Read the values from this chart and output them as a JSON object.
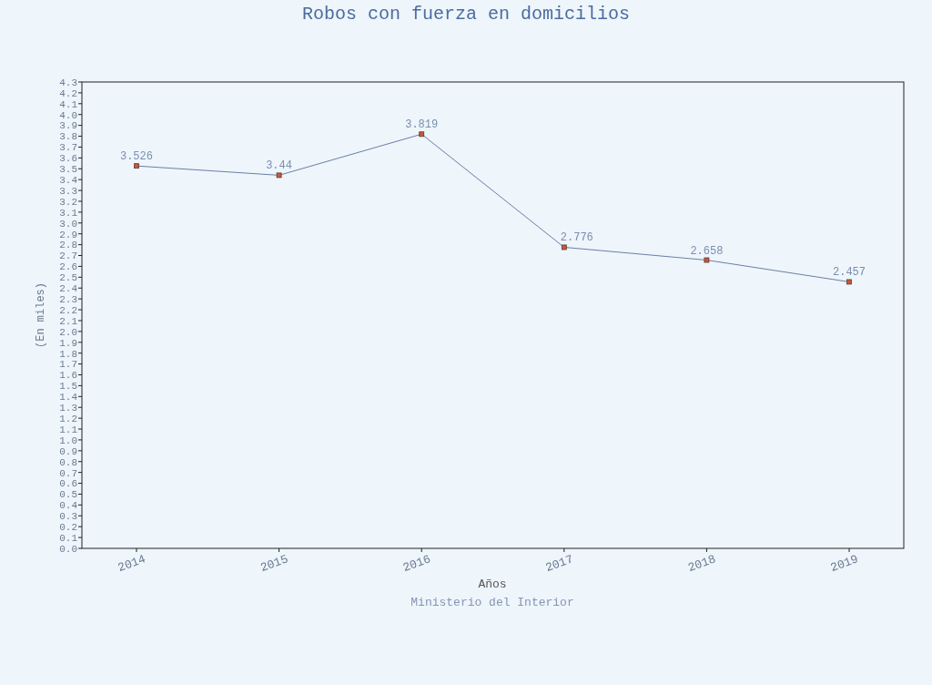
{
  "chart_data": {
    "type": "line",
    "title": "Robos con fuerza en domicilios",
    "xlabel": "Años",
    "ylabel": "(En miles)",
    "annotations": [
      "Ministerio del Interior"
    ],
    "categories": [
      "2014",
      "2015",
      "2016",
      "2017",
      "2018",
      "2019"
    ],
    "series": [
      {
        "color": "#6b7fa6",
        "values": [
          3.526,
          3.44,
          3.819,
          2.776,
          2.658,
          2.457
        ]
      }
    ],
    "ylim": [
      0,
      4.3
    ],
    "yticks": [
      {
        "value": 0,
        "label": "0.0"
      },
      0.1,
      0.2,
      0.3,
      0.4,
      0.5,
      0.6,
      0.7,
      0.8,
      0.9,
      {
        "value": 1,
        "label": "1.0"
      },
      1.1,
      1.2,
      1.3,
      1.4,
      1.5,
      1.6,
      1.7,
      1.8,
      1.9,
      {
        "value": 2,
        "label": "2.0"
      },
      2.1,
      2.2,
      2.3,
      2.4,
      2.5,
      2.6,
      2.7,
      2.8,
      2.9,
      {
        "value": 3,
        "label": "3.0"
      },
      3.1,
      3.2,
      3.3,
      3.4,
      3.5,
      3.6,
      3.7,
      3.8,
      3.9,
      {
        "value": 4,
        "label": "4.0"
      },
      4.1,
      4.2,
      4.3
    ],
    "marker": "square",
    "line_style": "solid",
    "data_labels": true,
    "grid": false
  }
}
